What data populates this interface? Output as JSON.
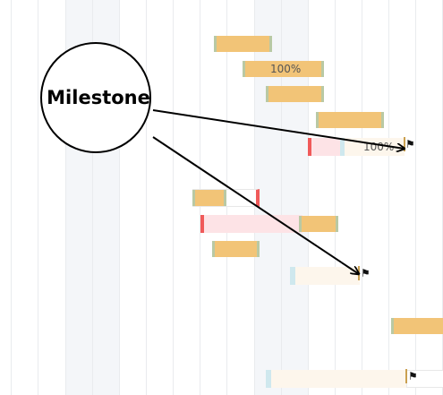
{
  "gantt": {
    "progress_labels": [
      "100%",
      "100%"
    ],
    "milestone_flag_icon": "flag-icon"
  },
  "annotation": {
    "callout_label": "Milestone"
  },
  "colors": {
    "done_bar": "#f2c477",
    "done_bar_edge": "#b9c9a4",
    "overdue": "#f05a5a",
    "overdue_fill": "#fde3e6",
    "todo_fill": "#fdf6ec",
    "todo_edge": "#cfe8ee",
    "weekend_band": "#f4f6f9",
    "grid": "#e9ebee"
  }
}
